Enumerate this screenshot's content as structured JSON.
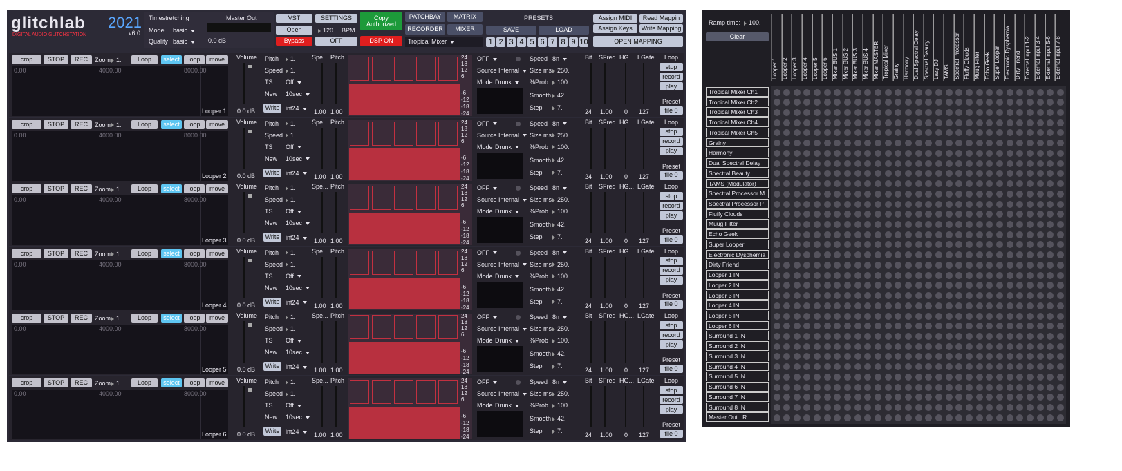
{
  "header": {
    "logo": "glitchlab",
    "logo_year": "2021",
    "version": "v6.0",
    "tagline": "DIGITAL AUDIO GLITCHSTATION",
    "timestretching": {
      "title": "Timestretching",
      "mode_label": "Mode",
      "mode": "basic",
      "quality_label": "Quality",
      "quality": "basic"
    },
    "master": {
      "title": "Master Out",
      "level": "0.0 dB"
    },
    "vst": {
      "title": "VST",
      "open": "Open",
      "bypass": "Bypass"
    },
    "settings": {
      "title": "SETTINGS",
      "bpm_value": "120.",
      "bpm_unit": "BPM",
      "off": "OFF"
    },
    "copy": "Copy Authorized",
    "dsp": "DSP ON",
    "nav": {
      "patchbay": "PATCHBAY",
      "matrix": "MATRIX",
      "recorder": "RECORDER",
      "mixer": "MIXER",
      "selected": "Tropical Mixer"
    },
    "presets": {
      "title": "PRESETS",
      "save": "SAVE",
      "load": "LOAD",
      "slots": [
        "1",
        "2",
        "3",
        "4",
        "5",
        "6",
        "7",
        "8",
        "9",
        "10"
      ]
    },
    "mapping": {
      "assign_midi": "Assign MIDI",
      "read": "Read Mappin",
      "assign_keys": "Assign Keys",
      "write": "Write Mapping",
      "open": "OPEN MAPPING"
    }
  },
  "strip_labels": {
    "crop": "crop",
    "stop_btn": "STOP",
    "rec": "REC",
    "zoom": "Zoom",
    "loop_btn": "Loop",
    "select": "select",
    "loop": "loop",
    "move": "move",
    "ruler": [
      "0.00",
      "4000.00",
      "8000.00"
    ],
    "volume": "Volume",
    "pitch": "Pitch",
    "speed": "Speed",
    "ts": "TS",
    "new": "New",
    "write": "Write",
    "spe": "Spe...",
    "pitch2": "Pitch",
    "meter": [
      "24",
      "18",
      "12",
      "6",
      "-6",
      "-12",
      "-18",
      "-24"
    ],
    "source": "Source",
    "mode": "Mode",
    "g_speed": "Speed",
    "size": "Size ms",
    "prob": "%Prob",
    "smooth": "Smooth",
    "step": "Step",
    "bit": "Bit",
    "sfreq": "SFreq",
    "hg": "HG...",
    "lgate": "LGate",
    "loop_title": "Loop",
    "stop": "stop",
    "record": "record",
    "play": "play",
    "preset": "Preset"
  },
  "loopers": [
    {
      "name": "Looper 1",
      "zoom": "1.",
      "volume": "0.0 dB",
      "pitch": "1.",
      "speed": "1.",
      "ts": "Off",
      "new": "10sec",
      "format": "int24",
      "spe_val": "1.00",
      "pitch_val": "1.00",
      "glitch": "OFF",
      "source": "Internal",
      "mode": "Drunk",
      "g_speed": "8n",
      "size": "250.",
      "prob": "100.",
      "smooth": "42.",
      "step": "7.",
      "bit": "24",
      "sfreq": "1.00",
      "hg": "0",
      "lgate": "127",
      "file": "file 0"
    },
    {
      "name": "Looper 2",
      "zoom": "1.",
      "volume": "0.0 dB",
      "pitch": "1.",
      "speed": "1.",
      "ts": "Off",
      "new": "10sec",
      "format": "int24",
      "spe_val": "1.00",
      "pitch_val": "1.00",
      "glitch": "OFF",
      "source": "Internal",
      "mode": "Drunk",
      "g_speed": "8n",
      "size": "250.",
      "prob": "100.",
      "smooth": "42.",
      "step": "7.",
      "bit": "24",
      "sfreq": "1.00",
      "hg": "0",
      "lgate": "127",
      "file": "file 0"
    },
    {
      "name": "Looper 3",
      "zoom": "1.",
      "volume": "0.0 dB",
      "pitch": "1.",
      "speed": "1.",
      "ts": "Off",
      "new": "10sec",
      "format": "int24",
      "spe_val": "1.00",
      "pitch_val": "1.00",
      "glitch": "OFF",
      "source": "Internal",
      "mode": "Drunk",
      "g_speed": "8n",
      "size": "250.",
      "prob": "100.",
      "smooth": "42.",
      "step": "7.",
      "bit": "24",
      "sfreq": "1.00",
      "hg": "0",
      "lgate": "127",
      "file": "file 0"
    },
    {
      "name": "Looper 4",
      "zoom": "1.",
      "volume": "0.0 dB",
      "pitch": "1.",
      "speed": "1.",
      "ts": "Off",
      "new": "10sec",
      "format": "int24",
      "spe_val": "1.00",
      "pitch_val": "1.00",
      "glitch": "OFF",
      "source": "Internal",
      "mode": "Drunk",
      "g_speed": "8n",
      "size": "250.",
      "prob": "100.",
      "smooth": "42.",
      "step": "7.",
      "bit": "24",
      "sfreq": "1.00",
      "hg": "0",
      "lgate": "127",
      "file": "file 0"
    },
    {
      "name": "Looper 5",
      "zoom": "1.",
      "volume": "0.0 dB",
      "pitch": "1.",
      "speed": "1.",
      "ts": "Off",
      "new": "10sec",
      "format": "int24",
      "spe_val": "1.00",
      "pitch_val": "1.00",
      "glitch": "OFF",
      "source": "Internal",
      "mode": "Drunk",
      "g_speed": "8n",
      "size": "250.",
      "prob": "100.",
      "smooth": "42.",
      "step": "7.",
      "bit": "24",
      "sfreq": "1.00",
      "hg": "0",
      "lgate": "127",
      "file": "file 0"
    },
    {
      "name": "Looper 6",
      "zoom": "1.",
      "volume": "0.0 dB",
      "pitch": "1.",
      "speed": "1.",
      "ts": "Off",
      "new": "10sec",
      "format": "int24",
      "spe_val": "1.00",
      "pitch_val": "1.00",
      "glitch": "OFF",
      "source": "Internal",
      "mode": "Drunk",
      "g_speed": "8n",
      "size": "250.",
      "prob": "100.",
      "smooth": "42.",
      "step": "7.",
      "bit": "24",
      "sfreq": "1.00",
      "hg": "0",
      "lgate": "127",
      "file": "file 0"
    }
  ],
  "matrix": {
    "ramp_label": "Ramp time:",
    "ramp_value": "100.",
    "clear": "Clear",
    "columns": [
      "Looper 1",
      "Looper 2",
      "Looper 3",
      "Looper 4",
      "Looper 5",
      "Looper 6",
      "Mixer BUS 1",
      "Mixer BUS 2",
      "Mixer BUS 3",
      "Mixer BUS 4",
      "Mixer MASTER",
      "Tropical Mixer",
      "Grainy",
      "Harmony",
      "Dual Spectral Delay",
      "Spectral Beauty",
      "Lazy DJ",
      "TAMS",
      "Spectral Processor",
      "Fluffy Clouds",
      "Muug Filter",
      "Echo Geek",
      "Super Looper",
      "Electronic Dysphemia",
      "Dirty Friend",
      "External input 1-2",
      "External input 3-4",
      "External input 5-6",
      "External input 7-8"
    ],
    "rows": [
      "Tropical Mixer Ch1",
      "Tropical Mixer Ch2",
      "Tropical Mixer Ch3",
      "Tropical Mixer Ch4",
      "Tropical Mixer Ch5",
      "Grainy",
      "Harmony",
      "Dual Spectral Delay",
      "Spectral Beauty",
      "TAMS (Modulator)",
      "Spectral Processor M",
      "Spectral Processor P",
      "Fluffy Clouds",
      "Muug Filter",
      "Echo Geek",
      "Super Looper",
      "Electronic Dysphemia",
      "Dirty Friend",
      "Looper 1 IN",
      "Looper 2 IN",
      "Looper 3 IN",
      "Looper 4 IN",
      "Looper 5 IN",
      "Looper 6 IN",
      "Surround 1 IN",
      "Surround 2 IN",
      "Surround 3 IN",
      "Surround 4 IN",
      "Surround 5 IN",
      "Surround 6 IN",
      "Surround 7 IN",
      "Surround 8 IN",
      "Master Out LR"
    ]
  }
}
